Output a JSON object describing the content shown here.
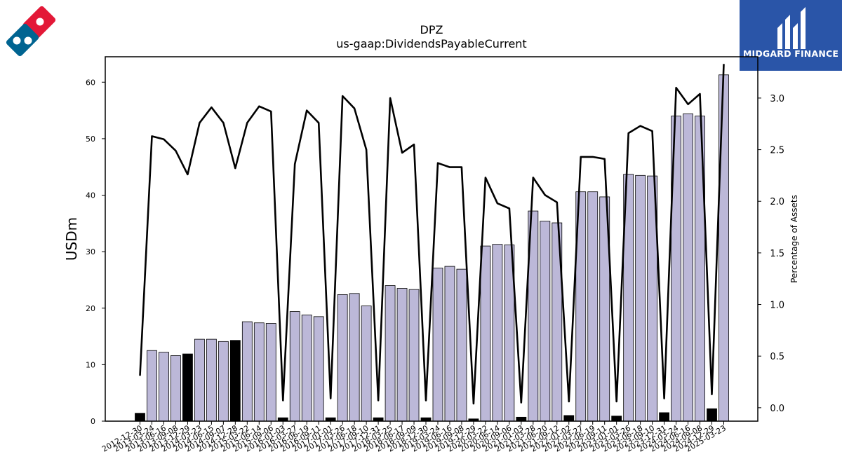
{
  "colors": {
    "bar_fill": "#bcb8d8",
    "bar_highlight": "#000000",
    "bar_edge": "#000000",
    "line": "#000000",
    "brand_bg": "#2a55a8",
    "logo_red": "#e31837",
    "logo_blue": "#006491"
  },
  "branding": {
    "name": "MIDGARD FINANCE",
    "left_logo_icon": "domino-logo-icon",
    "right_logo_icon": "midgard-logo-icon"
  },
  "chart_data": {
    "type": "bar",
    "title": "DPZ",
    "subtitle": "us-gaap:DividendsPayableCurrent",
    "ylabel": "USDm",
    "y2label": "Percentage of Assets",
    "ylim": [
      0,
      64.5
    ],
    "y2lim": [
      -0.13,
      3.4
    ],
    "yticks": [
      0,
      10,
      20,
      30,
      40,
      50,
      60
    ],
    "y2ticks": [
      0.0,
      0.5,
      1.0,
      1.5,
      2.0,
      2.5,
      3.0
    ],
    "y2tick_labels": [
      "0.0",
      "0.5",
      "1.0",
      "1.5",
      "2.0",
      "2.5",
      "3.0"
    ],
    "grid": false,
    "categories": [
      "2012-12-30",
      "2013-03-24",
      "2013-06-16",
      "2013-09-08",
      "2013-12-29",
      "2014-03-23",
      "2014-06-15",
      "2014-09-07",
      "2014-12-28",
      "2015-03-22",
      "2015-06-14",
      "2015-09-06",
      "2016-01-03",
      "2016-03-27",
      "2016-06-19",
      "2016-09-11",
      "2017-01-01",
      "2017-03-26",
      "2017-06-18",
      "2017-09-10",
      "2017-12-31",
      "2018-03-25",
      "2018-06-17",
      "2018-09-09",
      "2018-12-30",
      "2019-03-24",
      "2019-06-16",
      "2019-09-08",
      "2019-12-29",
      "2020-03-22",
      "2020-06-14",
      "2020-09-06",
      "2021-01-03",
      "2021-03-28",
      "2021-06-20",
      "2021-09-12",
      "2022-01-02",
      "2022-03-27",
      "2022-06-19",
      "2022-09-11",
      "2023-01-01",
      "2023-03-26",
      "2023-06-18",
      "2023-09-10",
      "2023-12-31",
      "2024-03-24",
      "2024-06-16",
      "2024-09-08",
      "2024-12-29",
      "2025-03-23"
    ],
    "series": [
      {
        "kind": "bar",
        "axis": "left",
        "values": [
          1.4,
          12.5,
          12.2,
          11.6,
          11.9,
          14.5,
          14.5,
          14.1,
          14.3,
          17.6,
          17.4,
          17.3,
          0.6,
          19.4,
          18.8,
          18.5,
          0.6,
          22.4,
          22.6,
          20.4,
          0.6,
          24.0,
          23.5,
          23.3,
          0.6,
          27.1,
          27.4,
          26.9,
          0.4,
          31.0,
          31.3,
          31.2,
          0.7,
          37.2,
          35.4,
          35.1,
          1.0,
          40.6,
          40.6,
          39.7,
          0.9,
          43.7,
          43.5,
          43.4,
          1.5,
          54.0,
          54.4,
          54.0,
          2.2,
          61.3
        ],
        "highlight": [
          true,
          false,
          false,
          false,
          true,
          false,
          false,
          false,
          true,
          false,
          false,
          false,
          true,
          false,
          false,
          false,
          true,
          false,
          false,
          false,
          true,
          false,
          false,
          false,
          true,
          false,
          false,
          false,
          true,
          false,
          false,
          false,
          true,
          false,
          false,
          false,
          true,
          false,
          false,
          false,
          true,
          false,
          false,
          false,
          true,
          false,
          false,
          false,
          true,
          false
        ]
      },
      {
        "kind": "line",
        "axis": "right",
        "values": [
          0.31,
          2.63,
          2.6,
          2.49,
          2.26,
          2.76,
          2.91,
          2.76,
          2.32,
          2.76,
          2.92,
          2.87,
          0.07,
          2.36,
          2.88,
          2.76,
          0.09,
          3.02,
          2.9,
          2.5,
          0.07,
          3.0,
          2.47,
          2.55,
          0.07,
          2.37,
          2.33,
          2.33,
          0.04,
          2.23,
          1.98,
          1.93,
          0.05,
          2.23,
          2.06,
          1.99,
          0.06,
          2.43,
          2.43,
          2.41,
          0.06,
          2.66,
          2.73,
          2.68,
          0.09,
          3.1,
          2.94,
          3.04,
          0.13,
          3.33
        ]
      }
    ]
  }
}
